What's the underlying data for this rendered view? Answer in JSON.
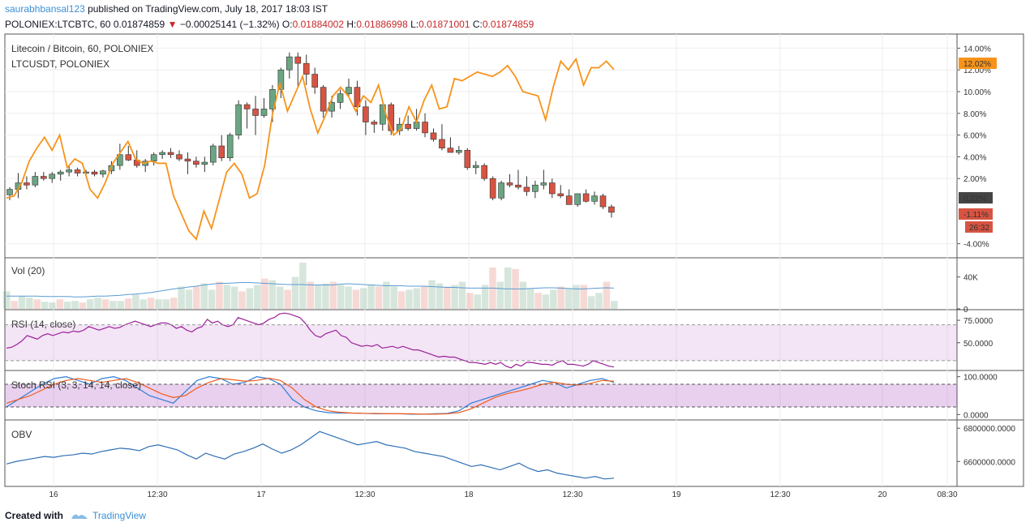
{
  "header": {
    "author": "saurabhbansal123",
    "published_text": " published on TradingView.com, July 18, 2017 18:03 IST",
    "symbol_line": "POLONIEX:LTCBTC, 60",
    "last_price": "0.01874859",
    "change_arrow": "▼",
    "change": "−0.00025141 (−1.32%)",
    "open_label": "O:",
    "open": "0.01884002",
    "high_label": "H:",
    "high": "0.01886998",
    "low_label": "L:",
    "low": "0.01871001",
    "close_label": "C:",
    "close": "0.01874859"
  },
  "footer": {
    "created_with": "Created with",
    "brand": "TradingView"
  },
  "colors": {
    "up": "#6ba583",
    "down": "#d75442",
    "compare": "#f7931a",
    "vol_ma": "#5b9bd5",
    "rsi": "#9b1f9b",
    "stoch_k": "#2f7ed8",
    "stoch_d": "#f25c1b",
    "obv": "#2f6fb5"
  },
  "chart_data": [
    {
      "type": "candlestick",
      "pane": "main",
      "title": "Litecoin / Bitcoin, 60, POLONIEX",
      "compare_title": "LTCUSDT, POLONIEX",
      "y_scale": "percent",
      "y_ticks": [
        "14.00%",
        "12.00%",
        "10.00%",
        "8.00%",
        "6.00%",
        "4.00%",
        "2.00%",
        "-4.00%"
      ],
      "ylim": [
        -5,
        15
      ],
      "x_ticks": [
        "16",
        "12:30",
        "17",
        "12:30",
        "18",
        "12:30",
        "19",
        "12:30",
        "20",
        "08:30"
      ],
      "last_labels": {
        "compare": "12.02%",
        "price": "0.22%",
        "change": "-1.11%",
        "timer": "26:32"
      },
      "candles_pct": [
        [
          0.5,
          1.2,
          0.0,
          1.0
        ],
        [
          1.0,
          2.5,
          0.2,
          1.6
        ],
        [
          1.6,
          2.2,
          1.0,
          1.4
        ],
        [
          1.4,
          2.6,
          1.2,
          2.2
        ],
        [
          2.2,
          2.6,
          1.8,
          2.0
        ],
        [
          2.0,
          2.6,
          1.6,
          2.4
        ],
        [
          2.4,
          2.8,
          1.8,
          2.6
        ],
        [
          2.6,
          3.2,
          2.2,
          2.8
        ],
        [
          2.8,
          3.0,
          2.2,
          2.5
        ],
        [
          2.5,
          2.8,
          2.2,
          2.6
        ],
        [
          2.6,
          2.8,
          2.2,
          2.4
        ],
        [
          2.4,
          2.8,
          2.1,
          2.7
        ],
        [
          2.7,
          3.6,
          2.4,
          3.2
        ],
        [
          3.2,
          5.2,
          2.8,
          4.2
        ],
        [
          4.2,
          5.0,
          3.6,
          3.7
        ],
        [
          3.7,
          4.6,
          3.0,
          3.2
        ],
        [
          3.2,
          3.8,
          2.6,
          3.6
        ],
        [
          3.6,
          4.4,
          3.2,
          4.2
        ],
        [
          4.2,
          4.6,
          3.8,
          4.4
        ],
        [
          4.4,
          4.8,
          3.9,
          4.2
        ],
        [
          4.2,
          4.6,
          3.6,
          3.8
        ],
        [
          3.8,
          4.4,
          2.4,
          3.6
        ],
        [
          3.6,
          4.0,
          3.0,
          3.3
        ],
        [
          3.3,
          4.0,
          2.6,
          3.5
        ],
        [
          3.5,
          5.2,
          3.2,
          5.0
        ],
        [
          5.0,
          6.0,
          3.6,
          3.9
        ],
        [
          3.9,
          6.2,
          3.6,
          6.0
        ],
        [
          6.0,
          9.2,
          5.6,
          8.8
        ],
        [
          8.8,
          9.0,
          6.6,
          8.4
        ],
        [
          8.4,
          9.6,
          6.0,
          7.8
        ],
        [
          7.8,
          9.4,
          7.6,
          8.4
        ],
        [
          8.4,
          10.6,
          7.2,
          10.2
        ],
        [
          10.2,
          12.2,
          9.4,
          12.0
        ],
        [
          12.0,
          13.6,
          11.2,
          13.2
        ],
        [
          13.2,
          13.6,
          10.4,
          12.6
        ],
        [
          12.6,
          13.4,
          10.6,
          11.6
        ],
        [
          11.6,
          12.2,
          9.8,
          10.4
        ],
        [
          10.4,
          10.6,
          7.6,
          8.2
        ],
        [
          8.2,
          9.6,
          7.6,
          9.0
        ],
        [
          9.0,
          10.2,
          8.4,
          9.8
        ],
        [
          9.8,
          11.2,
          9.6,
          10.4
        ],
        [
          10.4,
          11.0,
          7.8,
          8.6
        ],
        [
          8.6,
          9.2,
          6.0,
          7.2
        ],
        [
          7.2,
          7.4,
          6.2,
          7.0
        ],
        [
          7.0,
          7.6,
          6.4,
          8.8
        ],
        [
          8.8,
          9.0,
          6.0,
          6.4
        ],
        [
          6.4,
          7.6,
          6.0,
          7.0
        ],
        [
          7.0,
          7.8,
          6.4,
          6.6
        ],
        [
          6.6,
          8.4,
          6.4,
          7.2
        ],
        [
          7.2,
          8.0,
          5.8,
          6.2
        ],
        [
          6.2,
          6.6,
          5.4,
          5.6
        ],
        [
          5.6,
          7.0,
          4.6,
          4.8
        ],
        [
          4.8,
          5.8,
          4.4,
          4.4
        ],
        [
          4.4,
          5.0,
          4.2,
          4.6
        ],
        [
          4.6,
          4.8,
          2.8,
          3.0
        ],
        [
          3.0,
          3.6,
          2.4,
          3.2
        ],
        [
          3.2,
          3.4,
          1.8,
          2.0
        ],
        [
          2.0,
          2.2,
          0.0,
          0.2
        ],
        [
          0.2,
          1.8,
          0.0,
          1.6
        ],
        [
          1.6,
          2.4,
          1.2,
          1.4
        ],
        [
          1.4,
          2.8,
          1.0,
          1.2
        ],
        [
          1.2,
          2.2,
          0.4,
          0.8
        ],
        [
          0.8,
          1.8,
          0.2,
          1.4
        ],
        [
          1.4,
          2.8,
          1.0,
          1.6
        ],
        [
          1.6,
          2.0,
          0.2,
          0.6
        ],
        [
          0.6,
          1.4,
          0.2,
          0.4
        ],
        [
          0.4,
          1.0,
          -0.4,
          -0.4
        ],
        [
          -0.4,
          0.6,
          -0.6,
          0.6
        ],
        [
          0.6,
          1.0,
          -0.2,
          -0.1
        ],
        [
          -0.1,
          0.8,
          -0.4,
          0.4
        ],
        [
          0.4,
          0.6,
          -0.8,
          -0.6
        ],
        [
          -0.6,
          -0.4,
          -1.6,
          -1.11
        ]
      ],
      "compare_series": [
        {
          "name": "LTCUSDT, POLONIEX",
          "values": [
            0.2,
            0.4,
            1.6,
            3.6,
            4.8,
            5.8,
            4.6,
            6.0,
            3.0,
            3.8,
            3.4,
            1.0,
            0.2,
            1.6,
            3.4,
            4.4,
            5.4,
            3.8,
            3.4,
            3.6,
            3.4,
            3.4,
            0.4,
            -1.2,
            -2.8,
            -3.6,
            -1.0,
            -2.6,
            0.0,
            2.6,
            3.4,
            2.4,
            0.2,
            0.6,
            3.2,
            7.8,
            10.8,
            8.2,
            9.8,
            11.4,
            8.4,
            6.2,
            7.8,
            9.6,
            10.4,
            9.6,
            8.2,
            9.6,
            9.0,
            10.6,
            7.8,
            6.0,
            6.6,
            8.6,
            7.2,
            9.2,
            10.6,
            8.4,
            8.6,
            11.2,
            11.0,
            11.4,
            11.8,
            11.6,
            11.4,
            11.8,
            12.4,
            11.4,
            10.0,
            9.8,
            9.6,
            7.4,
            10.4,
            12.8,
            12.0,
            13.0,
            10.6,
            12.2,
            12.2,
            12.8,
            12.02
          ]
        }
      ]
    },
    {
      "type": "bar",
      "pane": "volume",
      "title": "Vol (20)",
      "y_ticks": [
        "40K",
        "0"
      ],
      "ylim": [
        0,
        60000
      ],
      "values": [
        22000,
        10000,
        16000,
        14000,
        12000,
        9000,
        8000,
        12000,
        9000,
        10000,
        8000,
        12000,
        14000,
        12000,
        10000,
        10000,
        13000,
        18000,
        12000,
        14000,
        12000,
        12000,
        14000,
        28000,
        24000,
        28000,
        32000,
        24000,
        34000,
        30000,
        28000,
        22000,
        26000,
        30000,
        38000,
        36000,
        28000,
        24000,
        40000,
        58000,
        34000,
        30000,
        32000,
        34000,
        30000,
        28000,
        24000,
        26000,
        30000,
        28000,
        34000,
        28000,
        22000,
        24000,
        26000,
        28000,
        36000,
        32000,
        28000,
        30000,
        34000,
        20000,
        18000,
        30000,
        52000,
        34000,
        52000,
        50000,
        34000,
        26000,
        20000,
        18000,
        24000,
        28000,
        26000,
        30000,
        30000,
        16000,
        20000,
        34000,
        10000
      ],
      "ma_values": [
        16000,
        16000,
        16000,
        16000,
        16000,
        15500,
        15500,
        15500,
        15500,
        15000,
        15000,
        15500,
        16000,
        16000,
        16500,
        17000,
        18000,
        18500,
        19500,
        20500,
        22000,
        23500,
        25000,
        26000,
        27500,
        28500,
        30000,
        31000,
        32000,
        32000,
        32500,
        33000,
        33000,
        32500,
        32000,
        31500,
        31000,
        30500,
        30500,
        30500,
        30000,
        30000,
        30000,
        30000,
        31000,
        31500,
        31000,
        30500,
        30000,
        29500,
        29000,
        29000,
        29000,
        28500,
        28500,
        28500,
        28000,
        27500,
        27000,
        27000,
        26500,
        26000,
        26000,
        26000,
        26000,
        25500,
        25000,
        25000,
        25000,
        25500,
        26000,
        26500,
        26500,
        26000,
        25500,
        25000,
        25000,
        25500,
        26000,
        26500,
        26000
      ]
    },
    {
      "type": "line",
      "pane": "rsi",
      "title": "RSI (14, close)",
      "y_ticks": [
        "75.0000",
        "50.0000"
      ],
      "ylim": [
        20,
        85
      ],
      "band": [
        30,
        70
      ],
      "values": [
        44,
        45,
        48,
        52,
        58,
        56,
        54,
        58,
        60,
        58,
        60,
        62,
        61,
        63,
        62,
        64,
        68,
        66,
        64,
        66,
        68,
        66,
        67,
        70,
        72,
        74,
        72,
        70,
        68,
        70,
        72,
        72,
        70,
        66,
        68,
        64,
        62,
        66,
        68,
        76,
        72,
        74,
        70,
        68,
        70,
        78,
        76,
        74,
        72,
        70,
        72,
        76,
        78,
        82,
        83,
        82,
        80,
        78,
        72,
        64,
        58,
        56,
        60,
        62,
        64,
        58,
        56,
        50,
        48,
        46,
        47,
        46,
        48,
        44,
        45,
        46,
        44,
        46,
        44,
        42,
        42,
        40,
        38,
        36,
        34,
        35,
        34,
        34,
        32,
        30,
        28,
        28,
        27,
        26,
        28,
        26,
        28,
        24,
        22,
        26,
        24,
        28,
        28,
        27,
        26,
        26,
        25,
        28,
        30,
        26,
        26,
        25,
        24,
        26,
        30,
        28,
        26,
        24,
        23
      ]
    },
    {
      "type": "line",
      "pane": "stoch_rsi",
      "title": "Stoch RSI (3, 3, 14, 14, close)",
      "y_ticks": [
        "100.0000",
        "0.0000"
      ],
      "ylim": [
        -10,
        110
      ],
      "band": [
        20,
        80
      ],
      "series": [
        {
          "name": "K",
          "values": [
            20,
            40,
            60,
            80,
            95,
            100,
            90,
            80,
            95,
            100,
            90,
            70,
            50,
            40,
            30,
            60,
            90,
            100,
            95,
            80,
            85,
            100,
            95,
            80,
            40,
            20,
            10,
            5,
            4,
            4,
            3,
            2,
            2,
            2,
            1,
            1,
            2,
            3,
            10,
            30,
            40,
            50,
            60,
            70,
            80,
            90,
            85,
            70,
            80,
            90,
            95,
            85
          ]
        },
        {
          "name": "D",
          "values": [
            30,
            40,
            50,
            65,
            80,
            90,
            95,
            90,
            85,
            90,
            95,
            85,
            70,
            55,
            45,
            50,
            70,
            85,
            95,
            92,
            88,
            90,
            96,
            90,
            70,
            40,
            20,
            10,
            6,
            4,
            3,
            3,
            2,
            2,
            2,
            1,
            1,
            2,
            5,
            15,
            30,
            45,
            55,
            62,
            70,
            80,
            85,
            80,
            78,
            82,
            90,
            88
          ]
        }
      ]
    },
    {
      "type": "line",
      "pane": "obv",
      "title": "OBV",
      "y_ticks": [
        "6800000.0000",
        "6600000.0000"
      ],
      "ylim": [
        6460000,
        6840000
      ],
      "values": [
        6585000,
        6600000,
        6610000,
        6620000,
        6630000,
        6625000,
        6635000,
        6640000,
        6650000,
        6645000,
        6660000,
        6670000,
        6680000,
        6675000,
        6665000,
        6690000,
        6700000,
        6685000,
        6670000,
        6640000,
        6615000,
        6650000,
        6630000,
        6615000,
        6645000,
        6660000,
        6680000,
        6705000,
        6675000,
        6650000,
        6670000,
        6700000,
        6740000,
        6780000,
        6760000,
        6740000,
        6720000,
        6700000,
        6710000,
        6720000,
        6700000,
        6690000,
        6680000,
        6660000,
        6650000,
        6640000,
        6630000,
        6610000,
        6590000,
        6570000,
        6580000,
        6565000,
        6550000,
        6570000,
        6590000,
        6560000,
        6540000,
        6550000,
        6530000,
        6520000,
        6510000,
        6500000,
        6510000,
        6495000,
        6500000
      ]
    }
  ]
}
